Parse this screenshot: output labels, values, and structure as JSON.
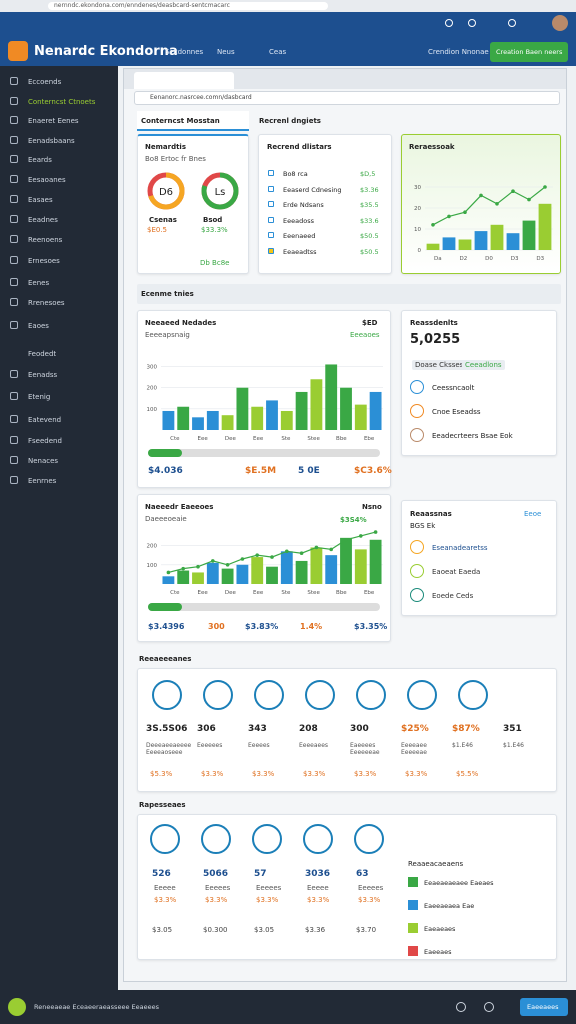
{
  "browser": {
    "url": "nernndc.ekondona.com/enndenes/deasbcard-sentcmacarc"
  },
  "header": {
    "brand": "Nenardc Ekondorna",
    "nav": [
      "Secdonnes",
      "Neus",
      "Ceas"
    ],
    "link": "Crendion Nnonae",
    "button": "Creation Baen neers"
  },
  "sidebar": {
    "items": [
      "Eccoends",
      "Conterncst Ctnoets",
      "Enaeret Eenes",
      "Eenadsbaans",
      "Eeards",
      "Eesaoanes",
      "Easaes",
      "Eeadnes",
      "Reenoens",
      "Ernesoes",
      "Eenes",
      "Rrenesoes",
      "Eaoes"
    ],
    "section": "Feodedt",
    "items2": [
      "Eenadss",
      "Etenig",
      "Eatevend",
      "Fseedend",
      "Nenaces",
      "Eenrnes"
    ]
  },
  "window": {
    "url": "Eenanorc.nasrcee.comn/dasbcard"
  },
  "tabs": [
    "Conterncst Mosstan",
    "Recrenl dngiets"
  ],
  "summary": {
    "title": "Nemardtis",
    "subtitle": "Bo8 Ertoc fr Bnes",
    "footer": "Db Bc8e",
    "gauges": [
      {
        "value": "D6",
        "label": "Csenas",
        "amount": "$E0.5",
        "pct": 70,
        "color": "#f5a623"
      },
      {
        "value": "Ls",
        "label": "Bsod",
        "amount": "$33.3%",
        "pct": 80,
        "color": "#3aa845"
      }
    ]
  },
  "list": {
    "title": "Recrend dlistars",
    "rows": [
      {
        "label": "Bo8 rca",
        "value": "$D,5"
      },
      {
        "label": "Eeaserd Cdnesing",
        "value": "$3.36"
      },
      {
        "label": "Erde Ndsans",
        "value": "$35.5"
      },
      {
        "label": "Eeeadoss",
        "value": "$33.6"
      },
      {
        "label": "Eeenaeed",
        "value": "$50.5"
      },
      {
        "label": "Eeaeadtss",
        "value": "$50.5"
      }
    ]
  },
  "trend": {
    "title": "Reraessoak",
    "yticks": [
      0,
      10,
      20,
      30
    ],
    "ylim": [
      0,
      40
    ],
    "values": [
      3,
      6,
      5,
      9,
      12,
      8,
      14,
      22
    ],
    "line": [
      12,
      16,
      18,
      26,
      22,
      28,
      24,
      30
    ],
    "colors": [
      "#9acd32",
      "#2b8fd6",
      "#9acd32",
      "#2b8fd6",
      "#9acd32",
      "#2b8fd6",
      "#3aa845",
      "#9acd32"
    ],
    "xlabels": [
      "Da",
      "D2",
      "D0",
      "D3",
      "D3"
    ]
  },
  "section1": "Ecenme tnies",
  "sales": {
    "title": "Neeaeed Nedades",
    "subtitle": "Eeeeapsnaig",
    "badge": "$ED",
    "badge2": "Eeeaoes",
    "yticks": [
      100,
      200,
      300
    ],
    "ylim": [
      0,
      350
    ],
    "values": [
      90,
      110,
      60,
      90,
      70,
      200,
      110,
      140,
      90,
      180,
      240,
      310,
      200,
      120,
      180
    ],
    "colors": [
      "#2b8fd6",
      "#3aa845",
      "#2b8fd6",
      "#2b8fd6",
      "#9acd32",
      "#3aa845",
      "#9acd32",
      "#2b8fd6",
      "#9acd32",
      "#3aa845",
      "#9acd32",
      "#3aa845",
      "#3aa845",
      "#9acd32",
      "#2b8fd6"
    ],
    "xlabels": [
      "Cte",
      "Eee",
      "Dee",
      "Eee",
      "Ste",
      "Stee",
      "Bbe",
      "Ebe"
    ],
    "stats": [
      "$4.036",
      "$E.5M",
      "5 0E",
      "$C3.6%"
    ]
  },
  "results": {
    "title": "Reassdenlts",
    "value": "5,0255",
    "chips": [
      "Doase Cksses",
      "Ceeadlons"
    ],
    "rows": [
      "Ceessncaolt",
      "Cnoe Eseadss",
      "Eeadecrteers Bsae Eok"
    ]
  },
  "growth": {
    "title": "Naeeedr Eaeeoes",
    "subtitle": "Daeeeoeaie",
    "badge": "Nsno",
    "tag": "$3S4%",
    "yticks": [
      100,
      200
    ],
    "ylim": [
      0,
      260
    ],
    "values": [
      40,
      70,
      60,
      110,
      80,
      100,
      140,
      90,
      170,
      120,
      190,
      150,
      240,
      180,
      230
    ],
    "line": [
      60,
      80,
      90,
      120,
      100,
      130,
      150,
      140,
      170,
      160,
      190,
      180,
      230,
      250,
      270
    ],
    "colors": [
      "#2b8fd6",
      "#3aa845",
      "#9acd32",
      "#2b8fd6",
      "#3aa845",
      "#2b8fd6",
      "#9acd32",
      "#3aa845",
      "#2b8fd6",
      "#3aa845",
      "#9acd32",
      "#2b8fd6",
      "#3aa845",
      "#9acd32",
      "#3aa845"
    ],
    "xlabels": [
      "Cte",
      "Eee",
      "Dee",
      "Eee",
      "Ste",
      "Stee",
      "Bbe",
      "Ebe"
    ],
    "stats": [
      "$3.4396",
      "300",
      "$3.83%",
      "1.4%",
      "$3.35%"
    ]
  },
  "reasons": {
    "title": "Reaassnas",
    "subtitle": "BGS Ek",
    "badge": "Eeoe",
    "rows": [
      "Eseanadearetss",
      "Eaoeat Eaeda",
      "Eoede Ceds"
    ]
  },
  "section2": "Reeaeeeanes",
  "metrics": [
    {
      "value": "3S.5S06",
      "label": "Deeeaeeaeeee Eeeeaoseee",
      "pct": "$5.3%"
    },
    {
      "value": "306",
      "label": "Eeeeees",
      "pct": "$3.3%"
    },
    {
      "value": "343",
      "label": "Eeeees",
      "pct": "$3.3%"
    },
    {
      "value": "208",
      "label": "Eeeeaees",
      "pct": "$3.3%"
    },
    {
      "value": "300",
      "label": "Eaeeees Eeeeeeae",
      "pct": "$3.3%"
    },
    {
      "value": "$25%",
      "label": "Eeeeaee Eeeeeae",
      "pct": "$3.3%"
    },
    {
      "value": "$87%",
      "label": "$1.E46",
      "pct": "$5.5%"
    },
    {
      "value": "351",
      "label": "$1.E46",
      "pct": null
    }
  ],
  "section3": "Rapesseaes",
  "metrics2": [
    {
      "value": "526",
      "label": "Eeeee",
      "pct": "$3.3%",
      "amount": "$3.05"
    },
    {
      "value": "5066",
      "label": "Eeeees",
      "pct": "$3.3%",
      "amount": "$0.300"
    },
    {
      "value": "57",
      "label": "Eeeees",
      "pct": "$3.3%",
      "amount": "$3.05"
    },
    {
      "value": "3036",
      "label": "Eeeee",
      "pct": "$3.3%",
      "amount": "$3.36"
    },
    {
      "value": "63",
      "label": "Eeeees",
      "pct": "$3.3%",
      "amount": "$3.70"
    }
  ],
  "legend": {
    "title": "Reaaeacaeaens",
    "items": [
      {
        "label": "Eeaeaeaeaee Eaeaes",
        "color": "#3aa845"
      },
      {
        "label": "Eaeeaeaea Eae",
        "color": "#2b8fd6"
      },
      {
        "label": "Eaeaeaes",
        "color": "#9acd32"
      },
      {
        "label": "Eaeeaes",
        "color": "#e04848"
      }
    ]
  },
  "footer": {
    "text": "Reneeaeae Eceaeeraeasseee Eeaeees",
    "button": "Eaeeaees"
  }
}
